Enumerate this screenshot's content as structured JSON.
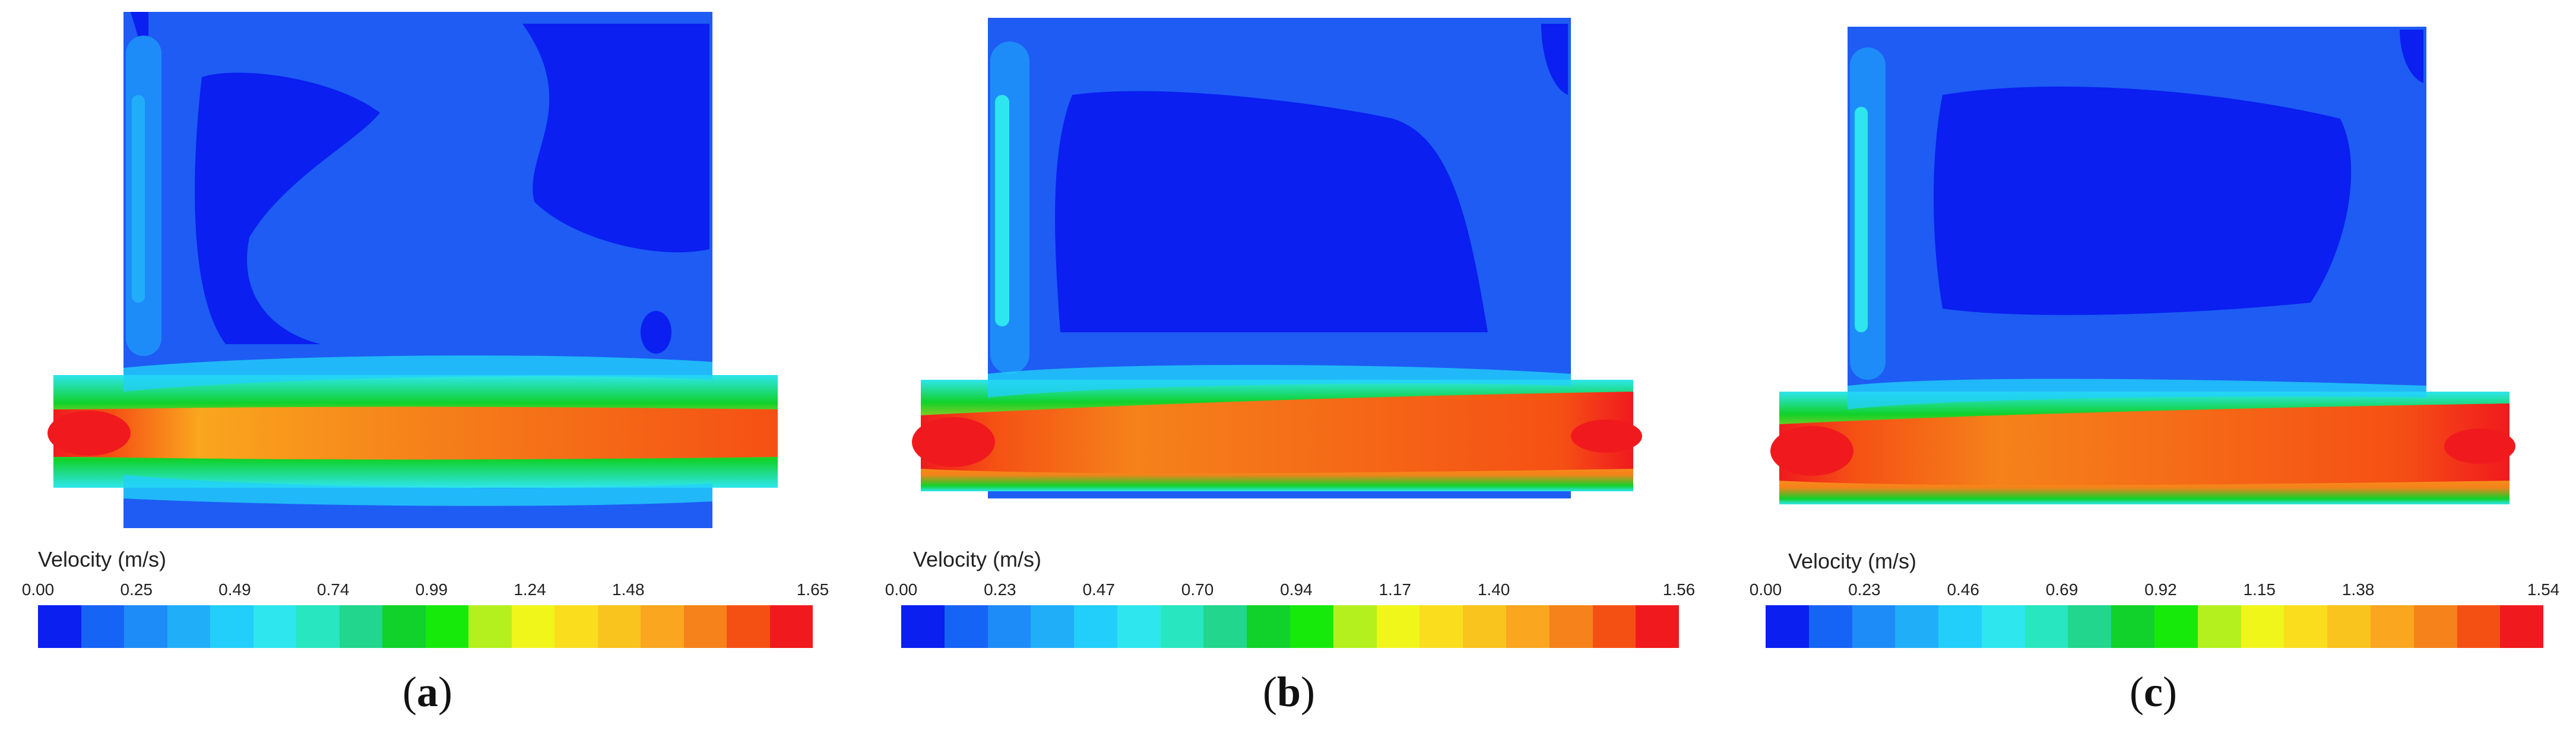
{
  "legend_title": "Velocity (m/s)",
  "colormap": [
    "#0a1ff0",
    "#1664f5",
    "#1e8cf8",
    "#20aef9",
    "#22cffa",
    "#2ee6ee",
    "#28e6c0",
    "#22d68e",
    "#10d22a",
    "#16ea0a",
    "#b4f01e",
    "#f0f51a",
    "#fade1e",
    "#fac41e",
    "#faa61e",
    "#f5821a",
    "#f55014",
    "#f01a1e"
  ],
  "panels": [
    {
      "label": "a",
      "ticks": [
        "0.00",
        "0.25",
        "0.49",
        "0.74",
        "0.99",
        "1.24",
        "1.48",
        "1.65"
      ]
    },
    {
      "label": "b",
      "ticks": [
        "0.00",
        "0.23",
        "0.47",
        "0.70",
        "0.94",
        "1.17",
        "1.40",
        "1.56"
      ]
    },
    {
      "label": "c",
      "ticks": [
        "0.00",
        "0.23",
        "0.46",
        "0.69",
        "0.92",
        "1.15",
        "1.38",
        "1.54"
      ]
    }
  ]
}
